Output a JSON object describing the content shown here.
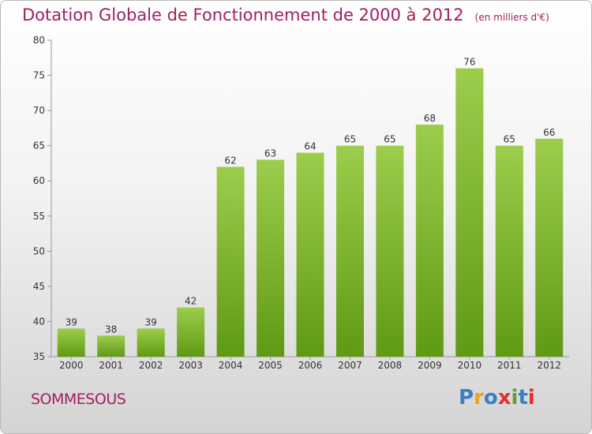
{
  "title": "Dotation Globale de Fonctionnement de 2000 à 2012",
  "subtitle": "(en milliers d'€)",
  "commune": "SOMMESOUS",
  "logo": {
    "text": "Proxiti",
    "letters": [
      "P",
      "r",
      "o",
      "x",
      "i",
      "t",
      "i"
    ],
    "colors": [
      "#3a7fc2",
      "#f0a020",
      "#3a7fc2",
      "#e03030",
      "#60a030",
      "#3a7fc2",
      "#e03030"
    ]
  },
  "colors": {
    "bar_top": "#9ccd4c",
    "bar_bottom": "#5f9a14",
    "title": "#a02060"
  },
  "chart_data": {
    "type": "bar",
    "title": "Dotation Globale de Fonctionnement de 2000 à 2012",
    "subtitle": "(en milliers d'€)",
    "xlabel": "",
    "ylabel": "",
    "categories": [
      "2000",
      "2001",
      "2002",
      "2003",
      "2004",
      "2005",
      "2006",
      "2007",
      "2008",
      "2009",
      "2010",
      "2011",
      "2012"
    ],
    "values": [
      39,
      38,
      39,
      42,
      62,
      63,
      64,
      65,
      65,
      68,
      76,
      65,
      66
    ],
    "ylim": [
      35,
      80
    ],
    "yticks": [
      35,
      40,
      45,
      50,
      55,
      60,
      65,
      70,
      75,
      80
    ],
    "grid": false,
    "legend": "none"
  }
}
